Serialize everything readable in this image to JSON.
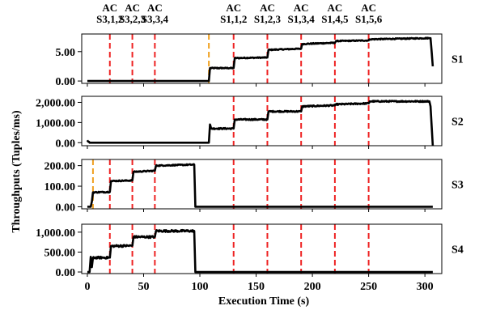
{
  "chart_data": {
    "type": "line",
    "xlabel": "Execution Time (s)",
    "ylabel": "Throughputs (Tuples/ms)",
    "xlim": [
      -5,
      315
    ],
    "x_ticks": [
      0,
      50,
      100,
      150,
      200,
      250,
      300
    ],
    "x_tick_labels": [
      "0",
      "50",
      "100",
      "150",
      "200",
      "250",
      "300"
    ],
    "colors": {
      "series": "#000000",
      "red_marker": "#ee2222",
      "orange_marker": "#f0a020"
    },
    "annotations": [
      {
        "line1": "AC",
        "line2": "S3,1,2",
        "x": 20
      },
      {
        "line1": "AC",
        "line2": "S3,2,3",
        "x": 40
      },
      {
        "line1": "AC",
        "line2": "S3,3,4",
        "x": 60
      },
      {
        "line1": "AC",
        "line2": "S1,1,2",
        "x": 130
      },
      {
        "line1": "AC",
        "line2": "S1,2,3",
        "x": 160
      },
      {
        "line1": "AC",
        "line2": "S1,3,4",
        "x": 190
      },
      {
        "line1": "AC",
        "line2": "S1,4,5",
        "x": 220
      },
      {
        "line1": "AC",
        "line2": "S1,5,6",
        "x": 250
      }
    ],
    "panels": [
      {
        "name": "S1",
        "ylim": [
          -0.4,
          8.0
        ],
        "y_ticks": [
          0,
          5
        ],
        "y_tick_labels": [
          "0.00",
          "5.00"
        ],
        "red_lines": [
          20,
          40,
          60,
          130,
          160,
          190,
          220,
          250
        ],
        "orange_lines": [
          108
        ],
        "noise": 0.08,
        "series": [
          [
            0,
            0
          ],
          [
            108,
            0
          ],
          [
            109,
            2.2
          ],
          [
            130,
            2.2
          ],
          [
            131,
            3.9
          ],
          [
            160,
            4.0
          ],
          [
            161,
            5.3
          ],
          [
            190,
            5.5
          ],
          [
            191,
            6.3
          ],
          [
            220,
            6.5
          ],
          [
            221,
            6.8
          ],
          [
            250,
            6.9
          ],
          [
            251,
            7.1
          ],
          [
            305,
            7.3
          ],
          [
            306,
            5.0
          ],
          [
            307,
            2.5
          ]
        ]
      },
      {
        "name": "S2",
        "ylim": [
          -150,
          2300
        ],
        "y_ticks": [
          0,
          1000,
          2000
        ],
        "y_tick_labels": [
          "0.00",
          "1,000.00",
          "2,000.00"
        ],
        "red_lines": [
          130,
          160,
          190,
          220,
          250
        ],
        "orange_lines": [],
        "noise": 30,
        "series": [
          [
            0,
            120
          ],
          [
            2,
            0
          ],
          [
            108,
            0
          ],
          [
            109,
            900
          ],
          [
            110,
            700
          ],
          [
            130,
            700
          ],
          [
            131,
            1150
          ],
          [
            160,
            1150
          ],
          [
            161,
            1550
          ],
          [
            190,
            1550
          ],
          [
            191,
            1800
          ],
          [
            220,
            1850
          ],
          [
            221,
            1900
          ],
          [
            250,
            1950
          ],
          [
            251,
            2050
          ],
          [
            304,
            2050
          ],
          [
            305,
            1800
          ],
          [
            307,
            -150
          ]
        ]
      },
      {
        "name": "S3",
        "ylim": [
          -10,
          230
        ],
        "y_ticks": [
          0,
          100,
          200
        ],
        "y_tick_labels": [
          "0.00",
          "100.00",
          "200.00"
        ],
        "red_lines": [
          20,
          40,
          60,
          130,
          160,
          190,
          220,
          250
        ],
        "orange_lines": [
          5
        ],
        "noise": 2.5,
        "series": [
          [
            0,
            0
          ],
          [
            3,
            0
          ],
          [
            4,
            25
          ],
          [
            5,
            70
          ],
          [
            20,
            72
          ],
          [
            21,
            125
          ],
          [
            40,
            128
          ],
          [
            41,
            170
          ],
          [
            60,
            175
          ],
          [
            61,
            200
          ],
          [
            95,
            205
          ],
          [
            96,
            0
          ],
          [
            307,
            0
          ]
        ]
      },
      {
        "name": "S4",
        "ylim": [
          -40,
          1200
        ],
        "y_ticks": [
          0,
          500,
          1000
        ],
        "y_tick_labels": [
          "0.00",
          "500.00",
          "1,000.00"
        ],
        "red_lines": [
          20,
          40,
          60,
          130,
          160,
          190,
          220,
          250
        ],
        "orange_lines": [],
        "noise": 25,
        "series": [
          [
            0,
            0
          ],
          [
            2,
            0
          ],
          [
            3,
            380
          ],
          [
            4,
            120
          ],
          [
            5,
            360
          ],
          [
            20,
            360
          ],
          [
            21,
            650
          ],
          [
            40,
            660
          ],
          [
            41,
            880
          ],
          [
            60,
            880
          ],
          [
            61,
            1030
          ],
          [
            95,
            1030
          ],
          [
            96,
            0
          ],
          [
            307,
            0
          ]
        ]
      }
    ]
  }
}
